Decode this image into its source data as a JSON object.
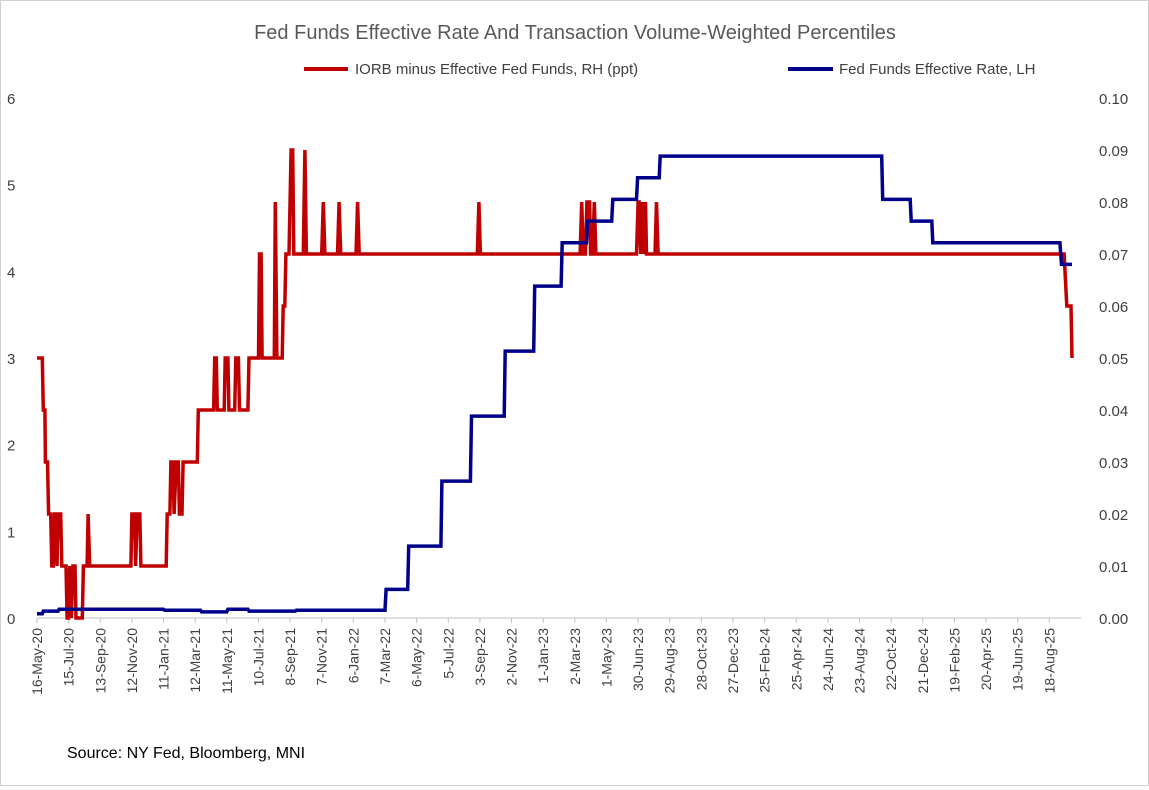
{
  "chart_data": {
    "type": "line",
    "title": "Fed Funds Effective Rate And Transaction Volume-Weighted Percentiles",
    "source": "Source: NY Fed, Bloomberg, MNI",
    "legend_position": "top-right",
    "y_left": {
      "ylim": [
        0,
        6
      ],
      "ticks": [
        "0",
        "1",
        "2",
        "3",
        "4",
        "5",
        "6"
      ]
    },
    "y_right": {
      "ylim": [
        0,
        0.1
      ],
      "ticks": [
        "0.00",
        "0.01",
        "0.02",
        "0.03",
        "0.04",
        "0.05",
        "0.06",
        "0.07",
        "0.08",
        "0.09",
        "0.10"
      ]
    },
    "x_range": [
      0,
      1980
    ],
    "x_tick_labels": [
      "16-May-20",
      "15-Jul-20",
      "13-Sep-20",
      "12-Nov-20",
      "11-Jan-21",
      "12-Mar-21",
      "11-May-21",
      "10-Jul-21",
      "8-Sep-21",
      "7-Nov-21",
      "6-Jan-22",
      "7-Mar-22",
      "6-May-22",
      "5-Jul-22",
      "3-Sep-22",
      "2-Nov-22",
      "1-Jan-23",
      "2-Mar-23",
      "1-May-23",
      "30-Jun-23",
      "29-Aug-23",
      "28-Oct-23",
      "27-Dec-23",
      "25-Feb-24",
      "25-Apr-24",
      "24-Jun-24",
      "23-Aug-24",
      "22-Oct-24",
      "21-Dec-24",
      "19-Feb-25",
      "20-Apr-25",
      "19-Jun-25",
      "18-Aug-25"
    ],
    "x_tick_step": 60,
    "series": [
      {
        "name": "IORB minus Effective Fed Funds, RH (ppt)",
        "axis": "right",
        "color": "#c00000",
        "points": [
          [
            0,
            0.05
          ],
          [
            10,
            0.05
          ],
          [
            12,
            0.04
          ],
          [
            15,
            0.04
          ],
          [
            16,
            0.03
          ],
          [
            20,
            0.03
          ],
          [
            22,
            0.02
          ],
          [
            26,
            0.02
          ],
          [
            28,
            0.01
          ],
          [
            31,
            0.01
          ],
          [
            33,
            0.02
          ],
          [
            36,
            0.02
          ],
          [
            38,
            0.01
          ],
          [
            40,
            0.02
          ],
          [
            45,
            0.02
          ],
          [
            47,
            0.01
          ],
          [
            55,
            0.01
          ],
          [
            57,
            0
          ],
          [
            60,
            0
          ],
          [
            62,
            0.01
          ],
          [
            65,
            0
          ],
          [
            68,
            0.01
          ],
          [
            72,
            0.01
          ],
          [
            74,
            0
          ],
          [
            86,
            0
          ],
          [
            88,
            0.01
          ],
          [
            95,
            0.01
          ],
          [
            97,
            0.02
          ],
          [
            100,
            0.01
          ],
          [
            178,
            0.01
          ],
          [
            180,
            0.02
          ],
          [
            185,
            0.02
          ],
          [
            187,
            0.01
          ],
          [
            190,
            0.02
          ],
          [
            195,
            0.02
          ],
          [
            197,
            0.01
          ],
          [
            245,
            0.01
          ],
          [
            247,
            0.02
          ],
          [
            252,
            0.02
          ],
          [
            254,
            0.03
          ],
          [
            258,
            0.03
          ],
          [
            260,
            0.02
          ],
          [
            264,
            0.03
          ],
          [
            268,
            0.03
          ],
          [
            270,
            0.02
          ],
          [
            275,
            0.02
          ],
          [
            277,
            0.03
          ],
          [
            300,
            0.03
          ],
          [
            304,
            0.03
          ],
          [
            306,
            0.04
          ],
          [
            330,
            0.04
          ],
          [
            335,
            0.04
          ],
          [
            337,
            0.05
          ],
          [
            340,
            0.05
          ],
          [
            342,
            0.04
          ],
          [
            355,
            0.04
          ],
          [
            357,
            0.05
          ],
          [
            362,
            0.05
          ],
          [
            364,
            0.04
          ],
          [
            375,
            0.04
          ],
          [
            377,
            0.05
          ],
          [
            382,
            0.05
          ],
          [
            384,
            0.04
          ],
          [
            400,
            0.04
          ],
          [
            402,
            0.05
          ],
          [
            420,
            0.05
          ],
          [
            422,
            0.07
          ],
          [
            425,
            0.07
          ],
          [
            427,
            0.05
          ],
          [
            440,
            0.05
          ],
          [
            442,
            0.05
          ],
          [
            450,
            0.05
          ],
          [
            452,
            0.08
          ],
          [
            455,
            0.05
          ],
          [
            465,
            0.05
          ],
          [
            467,
            0.06
          ],
          [
            470,
            0.06
          ],
          [
            472,
            0.07
          ],
          [
            478,
            0.07
          ],
          [
            482,
            0.09
          ],
          [
            485,
            0.09
          ],
          [
            487,
            0.07
          ],
          [
            505,
            0.07
          ],
          [
            508,
            0.09
          ],
          [
            511,
            0.07
          ],
          [
            540,
            0.07
          ],
          [
            543,
            0.08
          ],
          [
            546,
            0.07
          ],
          [
            570,
            0.07
          ],
          [
            573,
            0.08
          ],
          [
            576,
            0.07
          ],
          [
            605,
            0.07
          ],
          [
            608,
            0.08
          ],
          [
            611,
            0.07
          ],
          [
            835,
            0.07
          ],
          [
            838,
            0.08
          ],
          [
            841,
            0.07
          ],
          [
            1030,
            0.07
          ],
          [
            1033,
            0.08
          ],
          [
            1036,
            0.07
          ],
          [
            1040,
            0.07
          ],
          [
            1043,
            0.08
          ],
          [
            1046,
            0.08
          ],
          [
            1048,
            0.08
          ],
          [
            1050,
            0.07
          ],
          [
            1054,
            0.07
          ],
          [
            1057,
            0.08
          ],
          [
            1060,
            0.07
          ],
          [
            1137,
            0.07
          ],
          [
            1140,
            0.08
          ],
          [
            1142,
            0.08
          ],
          [
            1145,
            0.07
          ],
          [
            1148,
            0.08
          ],
          [
            1150,
            0.07
          ],
          [
            1154,
            0.08
          ],
          [
            1156,
            0.07
          ],
          [
            1172,
            0.07
          ],
          [
            1175,
            0.08
          ],
          [
            1178,
            0.07
          ],
          [
            1941,
            0.07
          ],
          [
            1948,
            0.07
          ],
          [
            1953,
            0.06
          ],
          [
            1961,
            0.06
          ],
          [
            1963,
            0.05
          ]
        ]
      },
      {
        "name": "Fed Funds Effective Rate, LH",
        "axis": "left",
        "color": "#00008b",
        "points": [
          [
            0,
            0.05
          ],
          [
            10,
            0.05
          ],
          [
            12,
            0.08
          ],
          [
            40,
            0.08
          ],
          [
            42,
            0.1
          ],
          [
            240,
            0.1
          ],
          [
            242,
            0.09
          ],
          [
            310,
            0.09
          ],
          [
            312,
            0.07
          ],
          [
            360,
            0.07
          ],
          [
            362,
            0.1
          ],
          [
            400,
            0.1
          ],
          [
            402,
            0.08
          ],
          [
            490,
            0.08
          ],
          [
            492,
            0.09
          ],
          [
            660,
            0.09
          ],
          [
            662,
            0.33
          ],
          [
            703,
            0.33
          ],
          [
            705,
            0.83
          ],
          [
            766,
            0.83
          ],
          [
            768,
            1.58
          ],
          [
            822,
            1.58
          ],
          [
            824,
            2.33
          ],
          [
            886,
            2.33
          ],
          [
            888,
            3.08
          ],
          [
            942,
            3.08
          ],
          [
            944,
            3.83
          ],
          [
            994,
            3.83
          ],
          [
            996,
            4.33
          ],
          [
            1042,
            4.33
          ],
          [
            1044,
            4.58
          ],
          [
            1090,
            4.58
          ],
          [
            1092,
            4.83
          ],
          [
            1137,
            4.83
          ],
          [
            1139,
            5.08
          ],
          [
            1180,
            5.08
          ],
          [
            1182,
            5.33
          ],
          [
            1602,
            5.33
          ],
          [
            1604,
            4.83
          ],
          [
            1656,
            4.83
          ],
          [
            1658,
            4.58
          ],
          [
            1697,
            4.58
          ],
          [
            1699,
            4.33
          ],
          [
            1940,
            4.33
          ],
          [
            1943,
            4.08
          ],
          [
            1963,
            4.08
          ]
        ]
      }
    ]
  }
}
